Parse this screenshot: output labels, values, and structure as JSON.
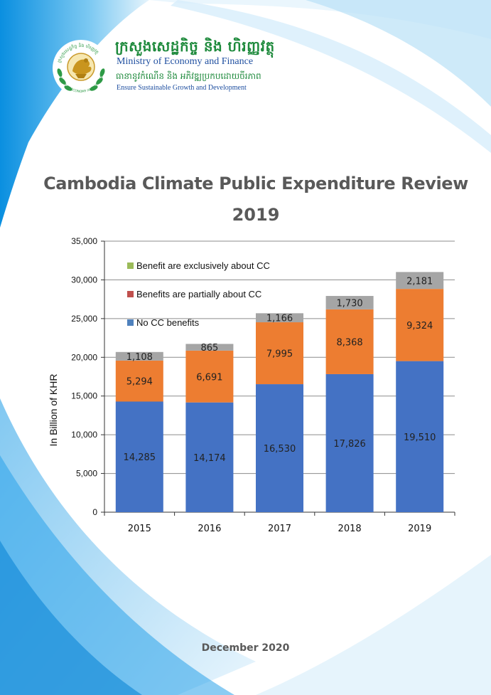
{
  "organization": {
    "name_khmer": "ក្រសួងសេដ្ឋកិច្ច និង ហិរញ្ញវត្ថុ",
    "name": "Ministry of Economy and Finance",
    "motto_khmer": "ធានានូវកំណើន និង អភិវឌ្ឍប្រកបដោយចីរភាព",
    "motto": "Ensure Sustainable Growth and Development",
    "seal_khmer": "ក្រសួងសេដ្ឋកិច្ច និង ហិរញ្ញវត្ថុ",
    "seal_text": "MINISTRY OF ECONOMY AND FINANCE"
  },
  "document": {
    "title_line1": "Cambodia Climate Public Expenditure Review",
    "title_line2": "2019",
    "date": "December 2020"
  },
  "colors": {
    "no_cc": "#4472c4",
    "partial": "#ed7d31",
    "exclusive": "#a5a5a5",
    "legend_exclusive": "#9bbb59",
    "legend_partial": "#c0504d",
    "legend_nocc": "#4f81bd",
    "accent_blue": "#1aa3e8"
  },
  "chart_data": {
    "type": "bar",
    "stacked": true,
    "categories": [
      "2015",
      "2016",
      "2017",
      "2018",
      "2019"
    ],
    "series": [
      {
        "name": "No CC benefits",
        "values": [
          14285,
          14174,
          16530,
          17826,
          19510
        ]
      },
      {
        "name": "Benefits are partially about CC",
        "values": [
          5294,
          6691,
          7995,
          8368,
          9324
        ]
      },
      {
        "name": "Benefit are exclusively about CC",
        "values": [
          1108,
          865,
          1166,
          1730,
          2181
        ]
      }
    ],
    "data_labels": {
      "No CC benefits": [
        "14,285",
        "14,174",
        "16,530",
        "17,826",
        "19,510"
      ],
      "Benefits are partially about CC": [
        "5,294",
        "6,691",
        "7,995",
        "8,368",
        "9,324"
      ],
      "Benefit are exclusively about CC": [
        "1,108",
        "865",
        "1,166",
        "1,730",
        "2,181"
      ]
    },
    "ylabel": "In Billion of KHR",
    "ylim": [
      0,
      35000
    ],
    "yticks": [
      0,
      5000,
      10000,
      15000,
      20000,
      25000,
      30000,
      35000
    ],
    "ytick_labels": [
      "0",
      "5,000",
      "10,000",
      "15,000",
      "20,000",
      "25,000",
      "30,000",
      "35,000"
    ],
    "grid": true,
    "legend": "top-left",
    "legend_order": [
      "Benefit are exclusively about CC",
      "Benefits are partially about CC",
      "No CC benefits"
    ]
  }
}
